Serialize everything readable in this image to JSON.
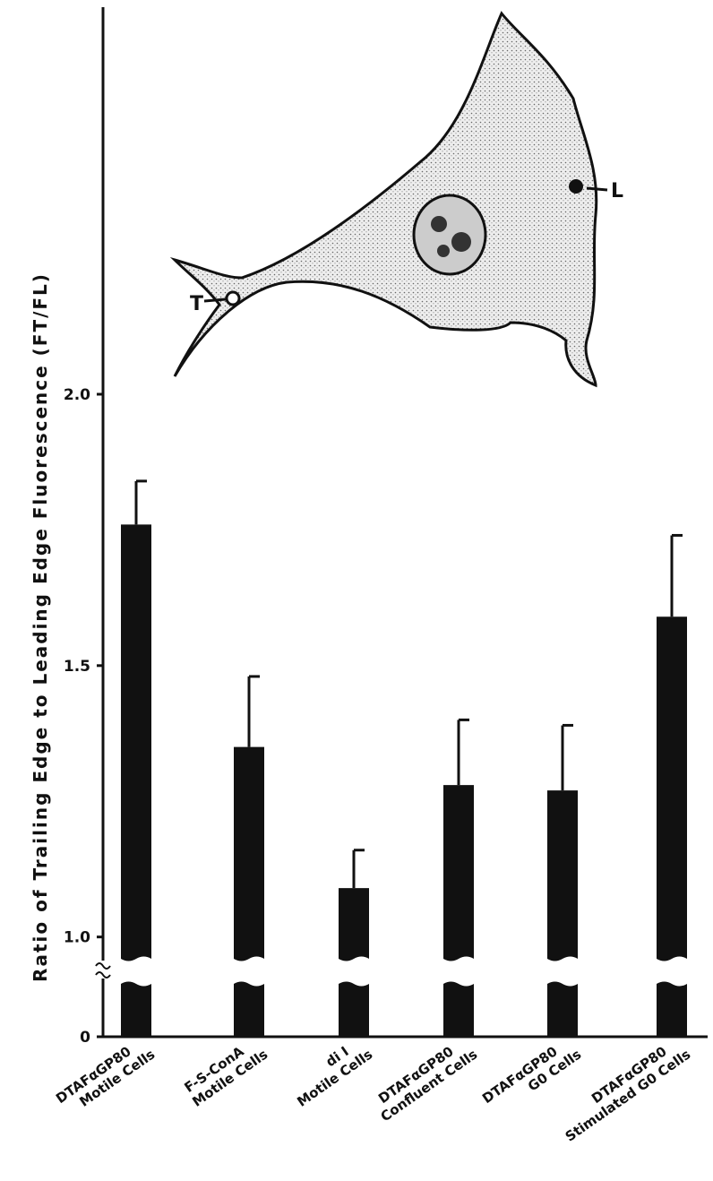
{
  "chart_data": {
    "type": "bar",
    "y_label": "Ratio of Trailing Edge to Leading Edge Fluorescence",
    "y_label_unit": "(FT/FL)",
    "annotations": [
      "T",
      "L"
    ],
    "categories": [
      [
        "DTAFαGP80",
        "Motile Cells"
      ],
      [
        "F-S-ConA",
        "Motile Cells"
      ],
      [
        "di I",
        "Motile Cells"
      ],
      [
        "DTAFαGP80",
        "Confluent Cells"
      ],
      [
        "DTAFαGP80",
        "G0 Cells"
      ],
      [
        "DTAFαGP80",
        "Stimulated G0 Cells"
      ]
    ],
    "values": [
      1.76,
      1.35,
      1.09,
      1.28,
      1.27,
      1.59
    ],
    "errors": [
      0.08,
      0.13,
      0.07,
      0.12,
      0.12,
      0.15
    ],
    "color": "#111111",
    "ylim": [
      0.94,
      2.7
    ],
    "yticks": [
      0,
      {
        "value": 1,
        "label": "1.0"
      },
      1.5,
      {
        "value": 2,
        "label": "2.0"
      }
    ],
    "axis_break": true
  }
}
